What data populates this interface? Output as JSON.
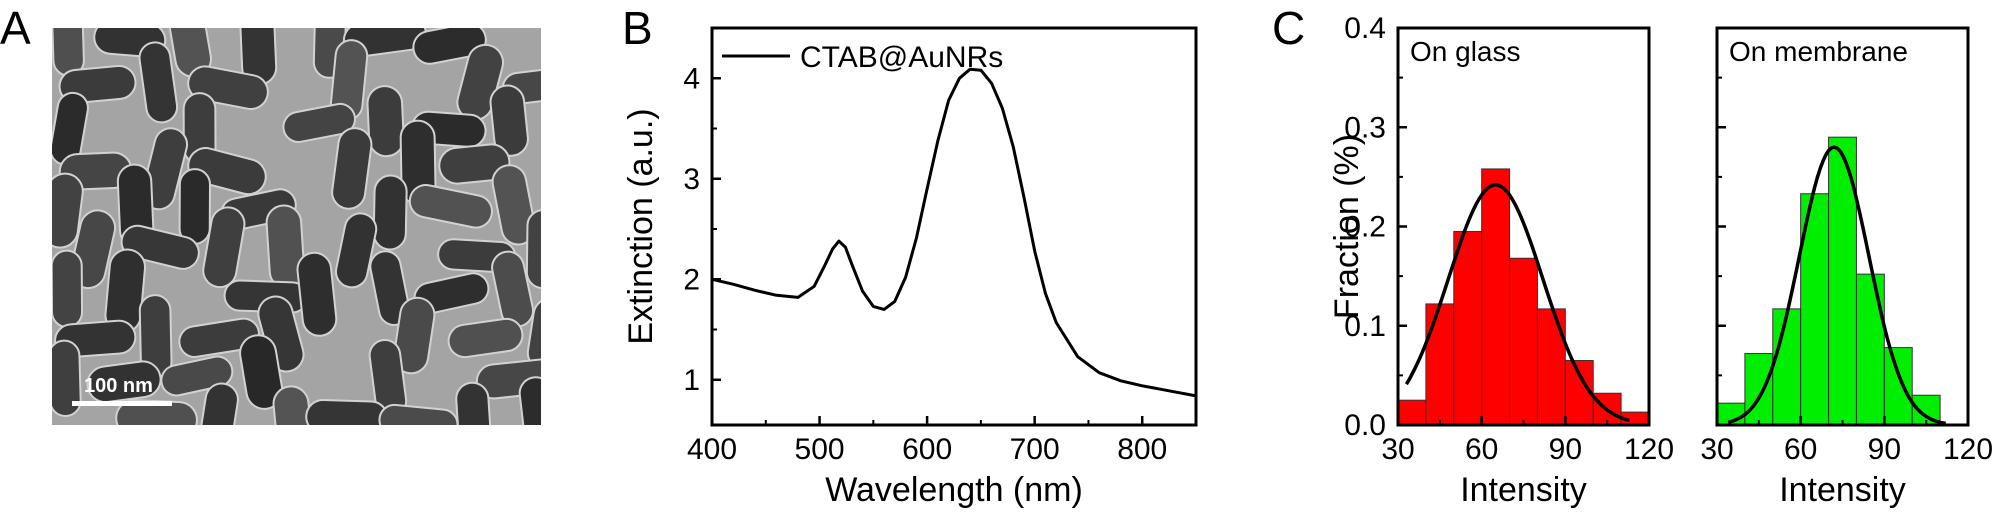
{
  "panels": {
    "a": {
      "letter": "A",
      "scale_bar": "100 nm"
    },
    "b": {
      "letter": "B"
    },
    "c": {
      "letter": "C"
    }
  },
  "chart_data": [
    {
      "type": "line",
      "panel": "B",
      "xlabel": "Wavelength (nm)",
      "ylabel": "Extinction (a.u.)",
      "xlim": [
        400,
        850
      ],
      "ylim": [
        0.55,
        4.5
      ],
      "xticks": [
        400,
        500,
        600,
        700,
        800
      ],
      "yticks": [
        1,
        2,
        3,
        4
      ],
      "legend": "top-left",
      "series": [
        {
          "name": "CTAB@AuNRs",
          "x": [
            400,
            420,
            440,
            460,
            480,
            495,
            505,
            512,
            518,
            524,
            530,
            540,
            550,
            560,
            570,
            580,
            590,
            600,
            610,
            620,
            630,
            640,
            650,
            660,
            670,
            680,
            690,
            700,
            710,
            720,
            740,
            760,
            780,
            800,
            820,
            850
          ],
          "y": [
            2.0,
            1.95,
            1.89,
            1.84,
            1.82,
            1.93,
            2.14,
            2.3,
            2.38,
            2.32,
            2.15,
            1.88,
            1.73,
            1.7,
            1.78,
            2.02,
            2.41,
            2.9,
            3.38,
            3.78,
            4.0,
            4.09,
            4.08,
            3.95,
            3.7,
            3.32,
            2.82,
            2.28,
            1.86,
            1.57,
            1.23,
            1.07,
            0.99,
            0.94,
            0.9,
            0.84
          ]
        }
      ]
    },
    {
      "type": "bar",
      "panel": "C",
      "label": "On glass",
      "xlabel": "Intensity",
      "ylabel": "Fraction (%)",
      "xlim": [
        30,
        120
      ],
      "ylim": [
        0,
        0.4
      ],
      "xticks": [
        30,
        60,
        90,
        120
      ],
      "yticks": [
        0.0,
        0.1,
        0.2,
        0.3,
        0.4
      ],
      "bar_color": "#ff0000",
      "bin_edges": [
        30,
        40,
        50,
        60,
        70,
        80,
        90,
        100,
        110,
        120
      ],
      "values": [
        0.025,
        0.122,
        0.195,
        0.258,
        0.168,
        0.117,
        0.065,
        0.032,
        0.013
      ],
      "fit": {
        "center": 65,
        "sigma": 17,
        "amplitude": 0.242,
        "x_range": [
          33,
          113
        ]
      }
    },
    {
      "type": "bar",
      "panel": "C",
      "label": "On membrane",
      "xlabel": "Intensity",
      "ylabel": "",
      "xlim": [
        30,
        120
      ],
      "ylim": [
        0,
        0.4
      ],
      "xticks": [
        30,
        60,
        90,
        120
      ],
      "yticks": [
        0.0,
        0.1,
        0.2,
        0.3,
        0.4
      ],
      "bar_color": "#00ee00",
      "bin_edges": [
        30,
        40,
        50,
        60,
        70,
        80,
        90,
        100,
        110
      ],
      "values": [
        0.022,
        0.072,
        0.117,
        0.233,
        0.29,
        0.152,
        0.078,
        0.03
      ],
      "fit": {
        "center": 72,
        "sigma": 12.5,
        "amplitude": 0.28,
        "x_range": [
          34,
          112
        ]
      }
    }
  ]
}
